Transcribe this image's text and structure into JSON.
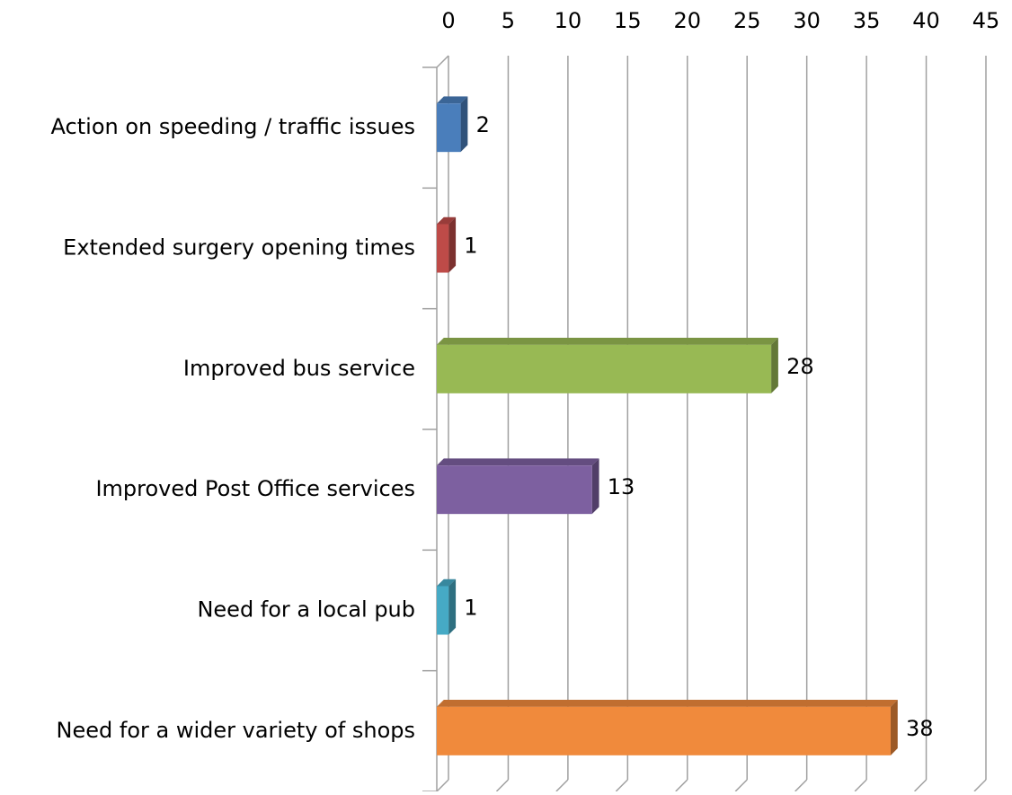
{
  "chart_data": {
    "type": "bar3d_horizontal",
    "categories": [
      "Action on speeding / traffic issues",
      "Extended surgery opening times",
      "Improved bus service",
      "Improved Post Office services",
      "Need for a local pub",
      "Need for a wider variety of shops"
    ],
    "values": [
      2,
      1,
      28,
      13,
      1,
      38
    ],
    "colors": [
      "#4a7ebb",
      "#be4b48",
      "#98b954",
      "#7d60a0",
      "#46aac5",
      "#f08a3c"
    ],
    "xlim": [
      0,
      45
    ],
    "xticks": [
      0,
      5,
      10,
      15,
      20,
      25,
      30,
      35,
      40,
      45
    ],
    "grid": true
  }
}
